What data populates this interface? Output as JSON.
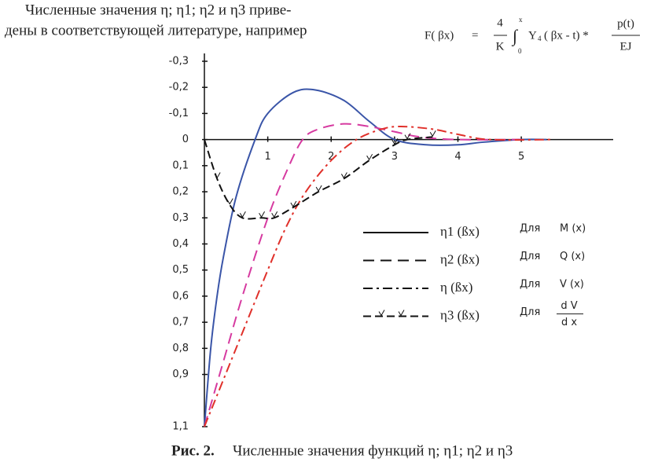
{
  "header": {
    "line1": "Численные значения η; η1; η2 и η3 приве-",
    "line2": "дены в соответствующей литературе, например"
  },
  "formula": {
    "lhs": "F( βx)",
    "eq": "=",
    "num": "4",
    "den": "K",
    "integral": "∫",
    "upper": "x",
    "lower": "0",
    "func": "Y",
    "sub": "4",
    "arg": "( βx - t) *",
    "frac_num": "p(t)",
    "frac_den": "EJ"
  },
  "chart_data": {
    "type": "line",
    "xlim": [
      0,
      6.45
    ],
    "ylim": [
      -0.33,
      1.1
    ],
    "y_inverted": true,
    "xticks": [
      1,
      2,
      3,
      4,
      5
    ],
    "yticks": [
      {
        "value": -0.3,
        "label": "-0,3"
      },
      {
        "value": -0.2,
        "label": "-0,2"
      },
      {
        "value": -0.1,
        "label": "-0,1"
      },
      0,
      {
        "value": 0.1,
        "label": "0,1"
      },
      {
        "value": 0.2,
        "label": "0,2"
      },
      {
        "value": 0.3,
        "label": "0,3"
      },
      {
        "value": 0.4,
        "label": "0,4"
      },
      {
        "value": 0.5,
        "label": "0,5"
      },
      {
        "value": 0.6,
        "label": "0,6"
      },
      {
        "value": 0.7,
        "label": "0,7"
      },
      {
        "value": 0.8,
        "label": "0,8"
      },
      {
        "value": 0.9,
        "label": "0,9"
      },
      {
        "value": 1.1,
        "label": "1,1"
      }
    ],
    "series": [
      {
        "name": "η1 (ßx)",
        "for": "M (x)",
        "color": "#3a55a8",
        "legend_color": "#111111",
        "dash": "none",
        "legend_dash": "none",
        "x": [
          0,
          0.1,
          0.2,
          0.3,
          0.5,
          0.8,
          1,
          1.4,
          1.75,
          2.2,
          2.6,
          3,
          3.5,
          4,
          4.4,
          5,
          5.4
        ],
        "values": [
          1.1,
          0.8,
          0.6,
          0.45,
          0.22,
          0,
          -0.1,
          -0.18,
          -0.19,
          -0.15,
          -0.07,
          0,
          0.02,
          0.02,
          0.01,
          0,
          0
        ]
      },
      {
        "name": "η2 (ßx)",
        "for": "Q (x)",
        "color": "#d63aa0",
        "legend_color": "#111111",
        "dash": "14,8",
        "legend_dash": "14,8",
        "x": [
          0,
          0.3,
          0.6,
          1,
          1.3,
          1.55,
          1.8,
          2.2,
          2.6,
          3,
          3.4,
          4,
          5
        ],
        "values": [
          1.1,
          0.85,
          0.6,
          0.3,
          0.12,
          0,
          -0.04,
          -0.06,
          -0.05,
          -0.03,
          -0.01,
          0,
          0
        ]
      },
      {
        "name": "η (ßx)",
        "for": "V (x)",
        "color": "#e0302a",
        "legend_color": "#111111",
        "dash": "12,5,3,5",
        "legend_dash": "12,5,3,5",
        "x": [
          0,
          0.5,
          1,
          1.3,
          1.6,
          2,
          2.4,
          2.8,
          3.1,
          3.6,
          4,
          4.5,
          5.5
        ],
        "values": [
          1.1,
          0.8,
          0.5,
          0.33,
          0.2,
          0.08,
          0,
          -0.04,
          -0.05,
          -0.04,
          -0.02,
          0,
          0
        ]
      },
      {
        "name": "η3 (ßx)",
        "for_num": "d V",
        "for_den": "d x",
        "color": "#111111",
        "legend_color": "#111111",
        "dash": "10,5",
        "legend_dash": "10,5",
        "marker": "check",
        "x": [
          0,
          0.2,
          0.4,
          0.6,
          0.9,
          1.1,
          1.4,
          1.8,
          2.2,
          2.6,
          3,
          3.2,
          3.6
        ],
        "values": [
          0,
          0.15,
          0.25,
          0.3,
          0.3,
          0.3,
          0.26,
          0.2,
          0.15,
          0.08,
          0.02,
          0,
          -0.01
        ]
      }
    ],
    "legend_prefix": "Для"
  },
  "caption": {
    "label": "Рис. 2.",
    "text": "Численные значения функций η; η1; η2 и η3"
  }
}
